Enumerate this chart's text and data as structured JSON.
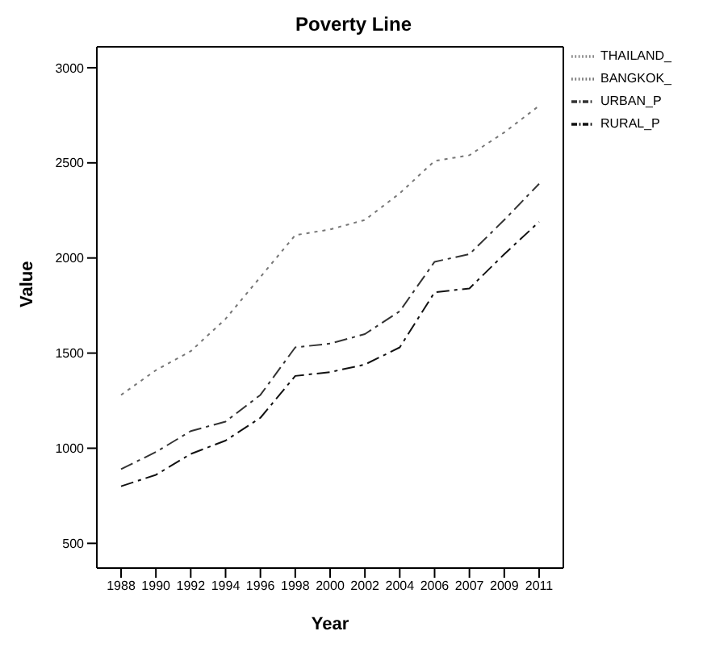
{
  "chart_data": {
    "type": "line",
    "title": "Poverty Line",
    "xlabel": "Year",
    "ylabel": "Value",
    "categories": [
      "1988",
      "1990",
      "1992",
      "1994",
      "1996",
      "1998",
      "2000",
      "2002",
      "2004",
      "2006",
      "2007",
      "2009",
      "2011"
    ],
    "series": [
      {
        "name": "THAILAND_",
        "color": "#888888",
        "line_style": "dotted",
        "values": [
          null,
          null,
          null,
          null,
          null,
          null,
          null,
          null,
          null,
          null,
          null,
          null,
          null
        ]
      },
      {
        "name": "BANGKOK_",
        "color": "#777777",
        "line_style": "dotted",
        "values": [
          1280,
          1410,
          1510,
          1680,
          1900,
          2120,
          2150,
          2200,
          2340,
          2510,
          2540,
          2660,
          2800
        ]
      },
      {
        "name": "URBAN_P",
        "color": "#333333",
        "line_style": "dashed",
        "values": [
          890,
          980,
          1090,
          1140,
          1280,
          1530,
          1550,
          1600,
          1720,
          1980,
          2020,
          2200,
          2390
        ]
      },
      {
        "name": "RURAL_P",
        "color": "#111111",
        "line_style": "dashed",
        "values": [
          800,
          860,
          970,
          1040,
          1160,
          1380,
          1400,
          1440,
          1530,
          1820,
          1840,
          2020,
          2190
        ]
      }
    ],
    "ylim": [
      370,
      3110
    ],
    "yticks": [
      500,
      1000,
      1500,
      2000,
      2500,
      3000
    ],
    "grid": false,
    "legend": "top right",
    "marker": "none"
  }
}
